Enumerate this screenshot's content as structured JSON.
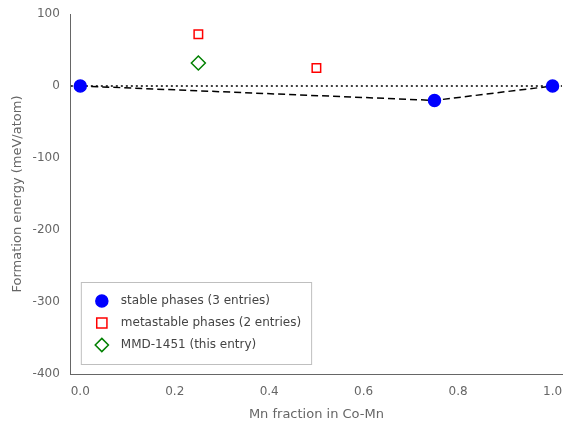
{
  "chart_data": {
    "type": "scatter",
    "xlabel": "Mn fraction in Co-Mn",
    "ylabel": "Formation energy (meV/atom)",
    "xlim": [
      -0.02,
      1.02
    ],
    "ylim": [
      -400,
      100
    ],
    "xticks": [
      {
        "value": 0,
        "label": "0.0"
      },
      0.2,
      0.4,
      0.6,
      0.8,
      {
        "value": 1,
        "label": "1.0"
      }
    ],
    "yticks": [
      -400,
      -300,
      -200,
      -100,
      0,
      100
    ],
    "grid": false,
    "legend": "lower left",
    "series": [
      {
        "type": "line",
        "line_style": "dotted",
        "color": "black",
        "x": [
          -0.02,
          1.02
        ],
        "values": [
          0,
          0
        ]
      },
      {
        "type": "line",
        "line_style": "dashed",
        "color": "black",
        "x": [
          0.0,
          0.75,
          1.0
        ],
        "values": [
          0.0,
          -20.0,
          0.0
        ]
      },
      {
        "name": "stable phases (3 entries)",
        "type": "scatter",
        "color": "blue",
        "marker": "circle",
        "x": [
          0.0,
          0.75,
          1.0
        ],
        "values": [
          0.0,
          -20.0,
          0.0
        ]
      },
      {
        "name": "metastable phases (2 entries)",
        "type": "scatter",
        "color": "red",
        "marker": "square-open",
        "x": [
          0.25,
          0.5
        ],
        "values": [
          72.0,
          25.0
        ]
      },
      {
        "name": "MMD-1451 (this entry)",
        "type": "scatter",
        "color": "green",
        "marker": "diamond-open",
        "x": [
          0.25
        ],
        "values": [
          32.0
        ]
      }
    ]
  }
}
